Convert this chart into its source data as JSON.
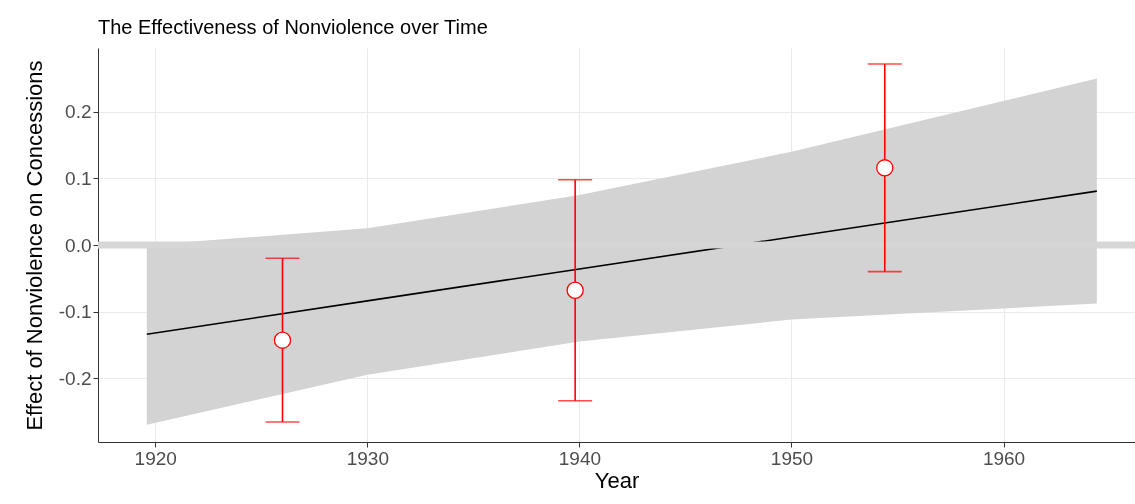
{
  "chart_data": {
    "type": "scatter",
    "title": "The Effectiveness of Nonviolence over Time",
    "xlabel": "Year",
    "ylabel": "Effect of Nonviolence on Concessions",
    "xlim": [
      1917.3,
      1966.2
    ],
    "xticks": [
      1920,
      1930,
      1940,
      1950,
      1960
    ],
    "ylim": [
      -0.296,
      0.296
    ],
    "yticks": [
      {
        "value": -0.2,
        "label": "-0.2"
      },
      {
        "value": -0.1,
        "label": "-0.1"
      },
      {
        "value": 0,
        "label": "0.0"
      },
      {
        "value": 0.1,
        "label": "0.1"
      },
      {
        "value": 0.2,
        "label": "0.2"
      }
    ],
    "grid": true,
    "ref_lines": [
      {
        "axis": "y",
        "value": 0,
        "color": "#d6d6d6"
      }
    ],
    "series": [
      {
        "type": "line",
        "color": "#000000",
        "x": [
          1919.6,
          1930,
          1940,
          1950,
          1964.4
        ],
        "values": [
          -0.134,
          -0.084,
          -0.036,
          0.012,
          0.081
        ],
        "lower": [
          -0.27,
          -0.195,
          -0.145,
          -0.112,
          -0.088
        ],
        "upper": [
          0.0,
          0.025,
          0.075,
          0.14,
          0.25
        ]
      },
      {
        "marker": "circle",
        "color": "#ff0000",
        "x": [
          1926.0,
          1939.8,
          1954.4
        ],
        "values": [
          -0.143,
          -0.068,
          0.116
        ],
        "errors": [
          0.123,
          0.166,
          0.156
        ]
      }
    ]
  }
}
